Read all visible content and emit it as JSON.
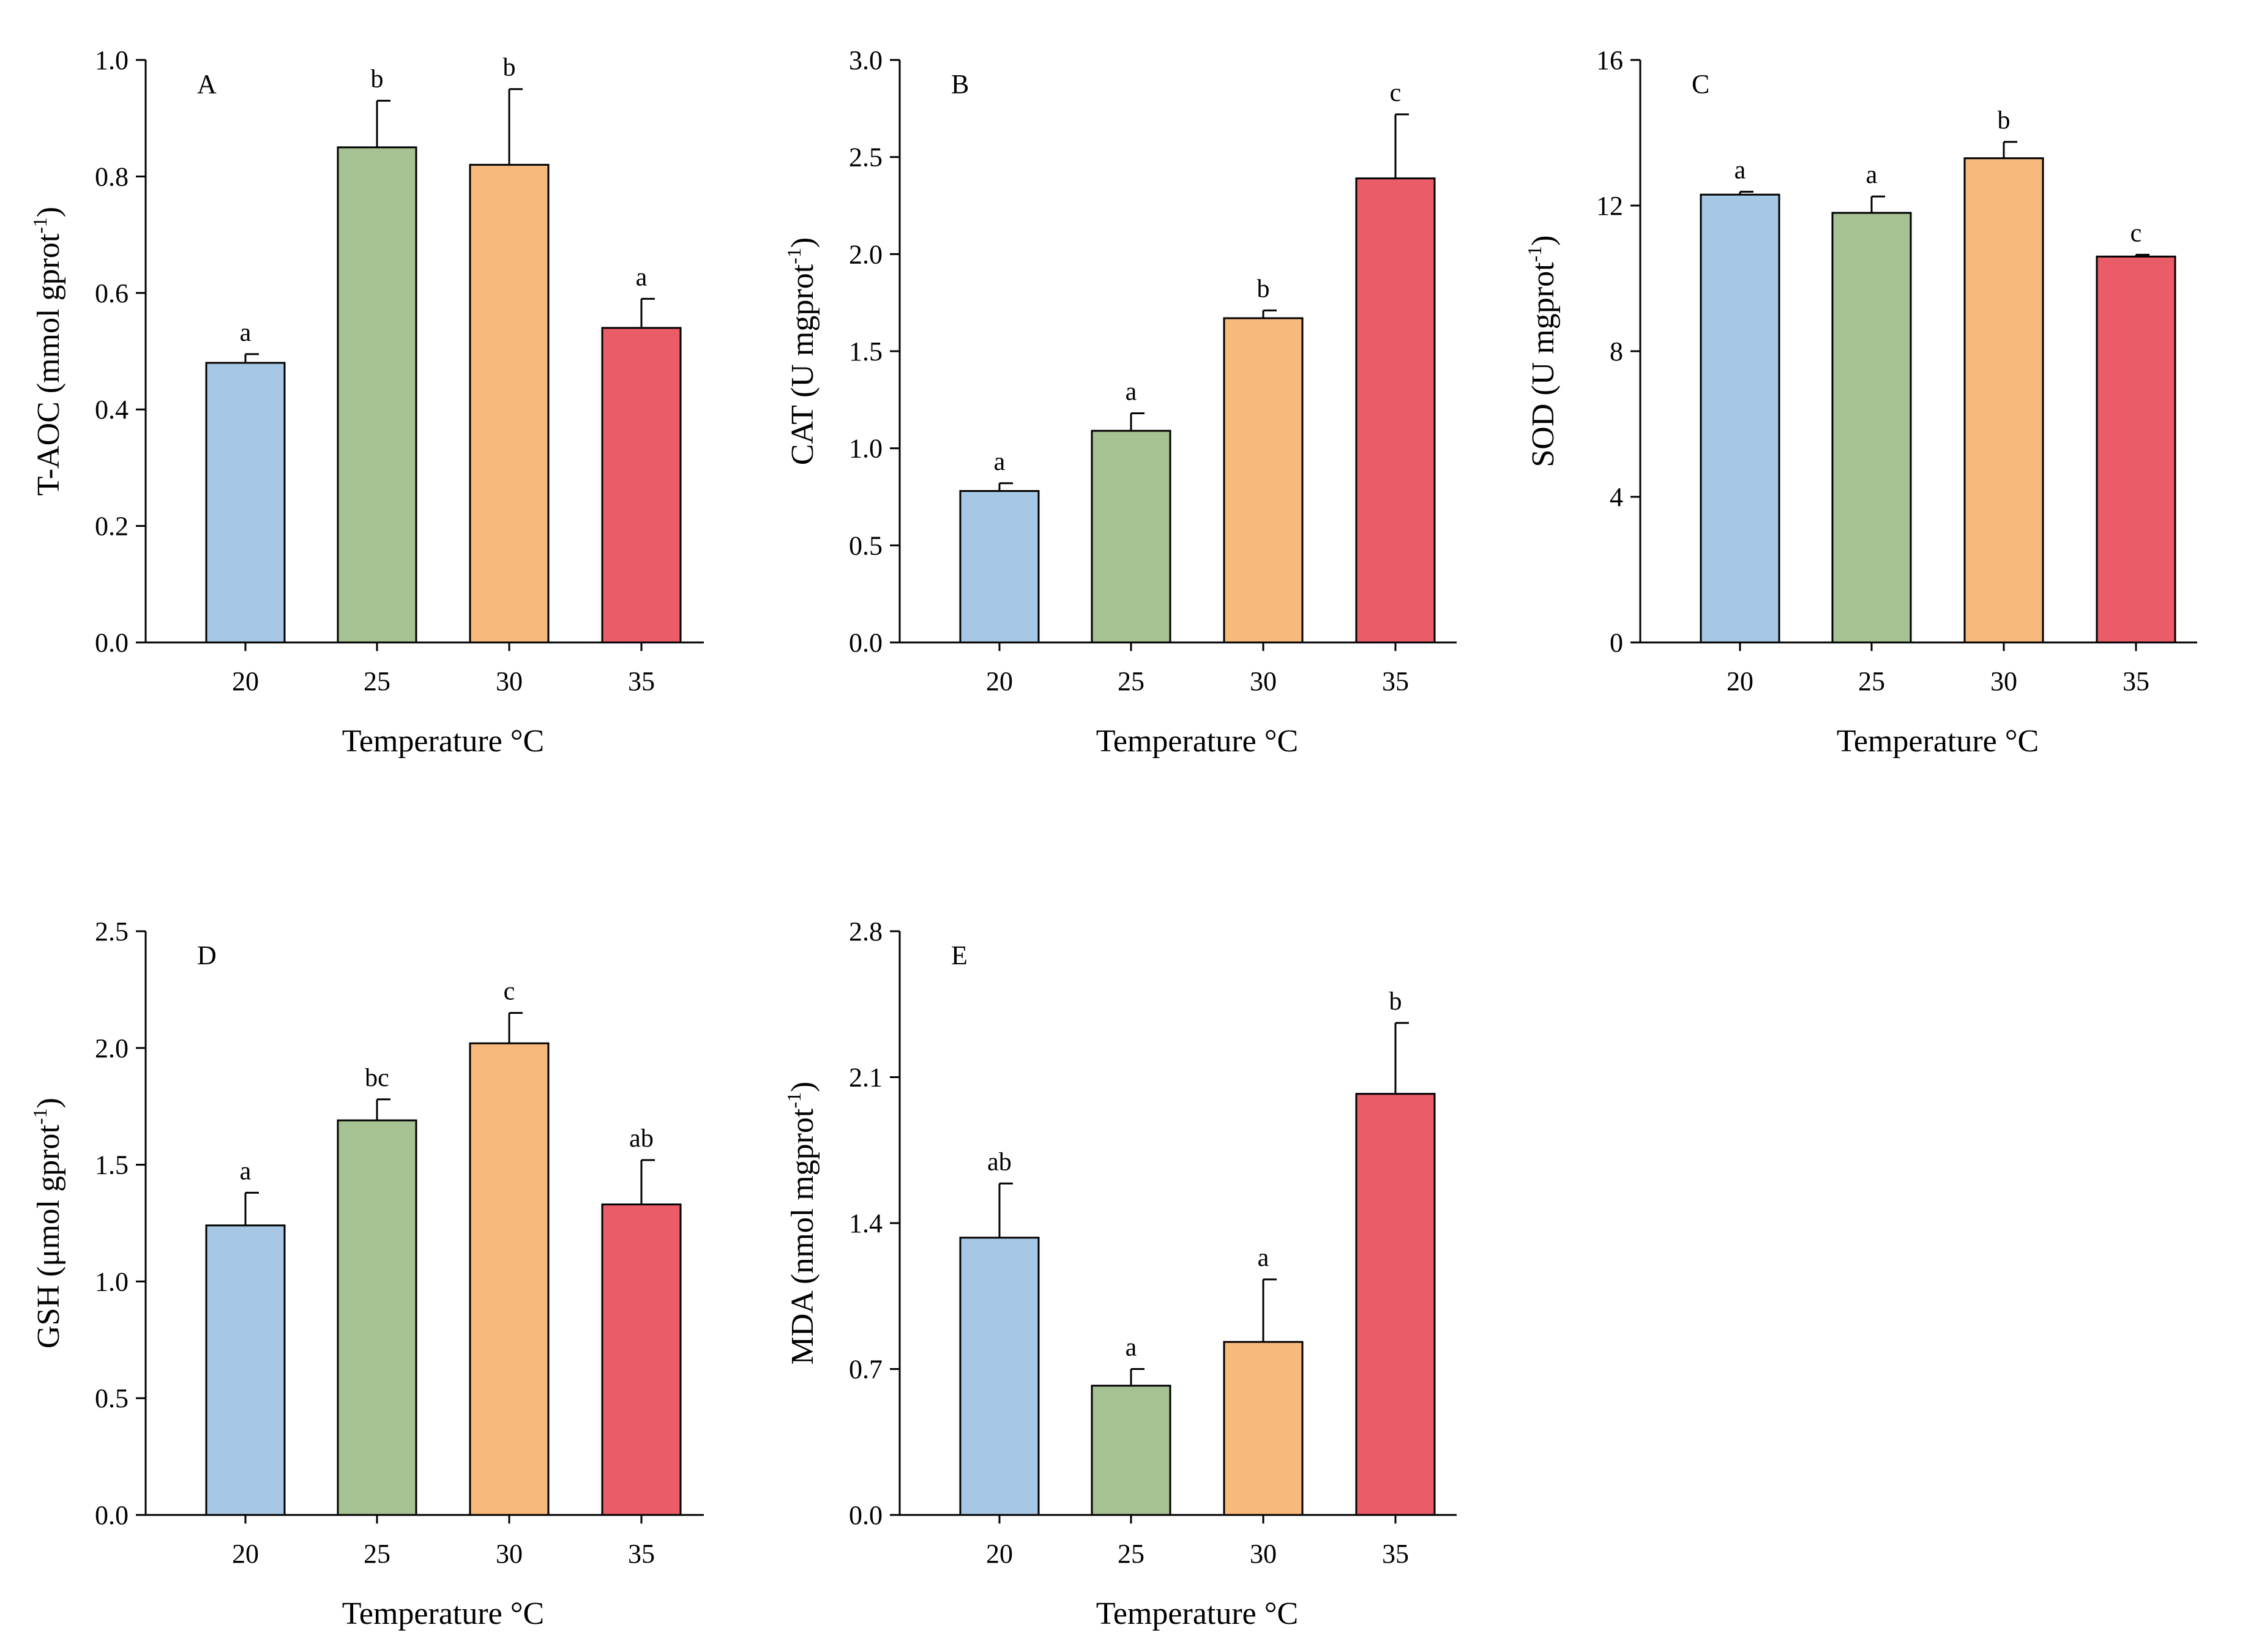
{
  "chart_data": [
    {
      "type": "bar",
      "panel": "A",
      "categories": [
        "20",
        "25",
        "30",
        "35"
      ],
      "values": [
        0.48,
        0.85,
        0.82,
        0.54
      ],
      "errors": [
        0.015,
        0.08,
        0.13,
        0.05
      ],
      "significance": [
        "a",
        "b",
        "b",
        "a"
      ],
      "xlabel": "Temperature °C",
      "ylabel": {
        "base": "T-AOC (mmol gprot",
        "sup": "-1",
        "end": ")"
      },
      "ylim": [
        0,
        1.0
      ],
      "yticks": [
        0.0,
        0.2,
        0.4,
        0.6,
        0.8,
        1.0
      ],
      "ytick_labels": [
        "0.0",
        "0.2",
        "0.4",
        "0.6",
        "0.8",
        "1.0"
      ]
    },
    {
      "type": "bar",
      "panel": "B",
      "categories": [
        "20",
        "25",
        "30",
        "35"
      ],
      "values": [
        0.78,
        1.09,
        1.67,
        2.39
      ],
      "errors": [
        0.04,
        0.09,
        0.04,
        0.33
      ],
      "significance": [
        "a",
        "a",
        "b",
        "c"
      ],
      "xlabel": "Temperature °C",
      "ylabel": {
        "base": "CAT (U mgprot",
        "sup": "-1",
        "end": ")"
      },
      "ylim": [
        0,
        3.0
      ],
      "yticks": [
        0.0,
        0.5,
        1.0,
        1.5,
        2.0,
        2.5,
        3.0
      ],
      "ytick_labels": [
        "0.0",
        "0.5",
        "1.0",
        "1.5",
        "2.0",
        "2.5",
        "3.0"
      ]
    },
    {
      "type": "bar",
      "panel": "C",
      "categories": [
        "20",
        "25",
        "30",
        "35"
      ],
      "values": [
        12.3,
        11.8,
        13.3,
        10.6
      ],
      "errors": [
        0.08,
        0.45,
        0.45,
        0.05
      ],
      "significance": [
        "a",
        "a",
        "b",
        "c"
      ],
      "xlabel": "Temperature °C",
      "ylabel": {
        "base": "SOD (U mgprot",
        "sup": "-1",
        "end": ")"
      },
      "ylim": [
        0,
        16
      ],
      "yticks": [
        0,
        4,
        8,
        12,
        16
      ],
      "ytick_labels": [
        "0",
        "4",
        "8",
        "12",
        "16"
      ]
    },
    {
      "type": "bar",
      "panel": "D",
      "categories": [
        "20",
        "25",
        "30",
        "35"
      ],
      "values": [
        1.24,
        1.69,
        2.02,
        1.33
      ],
      "errors": [
        0.14,
        0.09,
        0.13,
        0.19
      ],
      "significance": [
        "a",
        "bc",
        "c",
        "ab"
      ],
      "xlabel": "Temperature °C",
      "ylabel": {
        "base": "GSH (μmol gprot",
        "sup": "-1",
        "end": ")"
      },
      "ylim": [
        0,
        2.5
      ],
      "yticks": [
        0.0,
        0.5,
        1.0,
        1.5,
        2.0,
        2.5
      ],
      "ytick_labels": [
        "0.0",
        "0.5",
        "1.0",
        "1.5",
        "2.0",
        "2.5"
      ]
    },
    {
      "type": "bar",
      "panel": "E",
      "categories": [
        "20",
        "25",
        "30",
        "35"
      ],
      "values": [
        1.33,
        0.62,
        0.83,
        2.02
      ],
      "errors": [
        0.26,
        0.08,
        0.3,
        0.34
      ],
      "significance": [
        "ab",
        "a",
        "a",
        "b"
      ],
      "xlabel": "Temperature °C",
      "ylabel": {
        "base": "MDA (nmol mgprot",
        "sup": "-1",
        "end": ")"
      },
      "ylim": [
        0,
        2.8
      ],
      "yticks": [
        0.0,
        0.7,
        1.4,
        2.1,
        2.8
      ],
      "ytick_labels": [
        "0.0",
        "0.7",
        "1.4",
        "2.1",
        "2.8"
      ]
    }
  ],
  "colors": {
    "bars": [
      "#a6c8e4",
      "#a6c293",
      "#f7b97c",
      "#e95c68"
    ],
    "outline": "#000000"
  }
}
